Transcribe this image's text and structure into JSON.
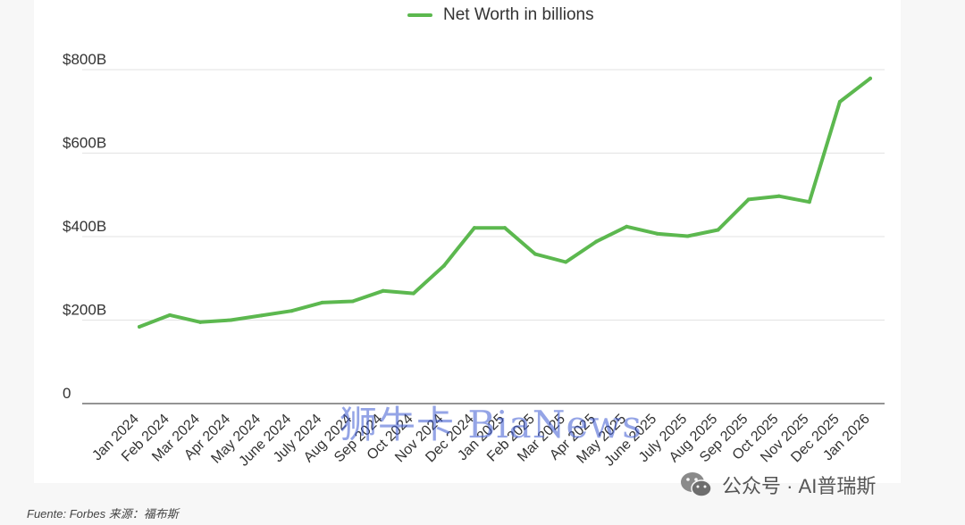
{
  "chart_data": {
    "type": "line",
    "categories": [
      "Jan 2024",
      "Feb 2024",
      "Mar 2024",
      "Apr 2024",
      "May 2024",
      "June 2024",
      "July 2024",
      "Aug 2024",
      "Sep 2024",
      "Oct 2024",
      "Nov 2024",
      "Dec 2024",
      "Jan 2025",
      "Feb 2025",
      "Mar 2025",
      "Apr 2025",
      "May 2025",
      "June 2025",
      "July 2025",
      "Aug 2025",
      "Sep 2025",
      "Oct 2025",
      "Nov 2025",
      "Dec 2025",
      "Jan 2026"
    ],
    "series": [
      {
        "name": "Net Worth in billions",
        "color": "#5cb84f",
        "values": [
          184,
          212,
          195,
          200,
          211,
          222,
          242,
          245,
          270,
          264,
          330,
          421,
          421,
          358,
          339,
          388,
          424,
          407,
          401,
          416,
          489,
          497,
          483,
          723,
          779
        ]
      }
    ],
    "yticks": [
      {
        "value": 0,
        "label": "0"
      },
      {
        "value": 200,
        "label": "$200B"
      },
      {
        "value": 400,
        "label": "$400B"
      },
      {
        "value": 600,
        "label": "$600B"
      },
      {
        "value": 800,
        "label": "$800B"
      }
    ],
    "ylim": [
      0,
      800
    ],
    "grid": true,
    "legend_position": "top-center",
    "title": "",
    "xlabel": "",
    "ylabel": ""
  },
  "source_note": "Fuente: Forbes  来源：福布斯",
  "watermark_text": "公众号 · AI普瑞斯",
  "brand_stamp": "狮牛卡 BiaNews"
}
